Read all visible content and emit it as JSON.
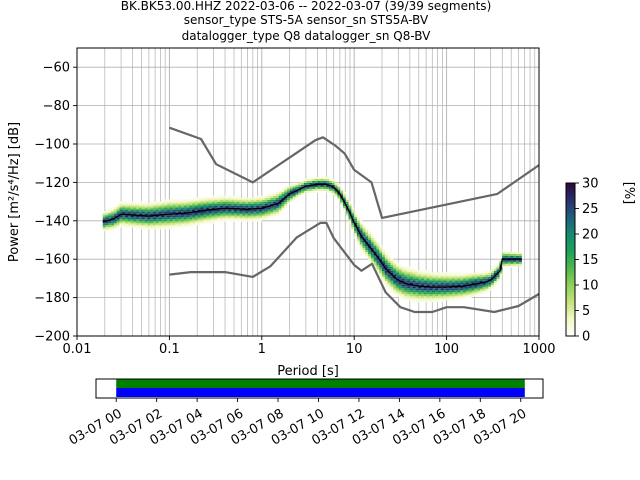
{
  "title": {
    "line1": "BK.BK53.00.HHZ   2022-03-06 -- 2022-03-07  (39/39 segments)",
    "line2": "sensor_type STS-5A sensor_sn STS5A-BV",
    "line3": "datalogger_type Q8 datalogger_sn Q8-BV"
  },
  "chart_data": [
    {
      "type": "heatmap",
      "title": "",
      "xlabel": "Period [s]",
      "ylabel": "Power [m²/s⁴/Hz] [dB]",
      "x_scale": "log",
      "xlim": [
        0.01,
        1000
      ],
      "ylim": [
        -200,
        -50
      ],
      "x_ticks": [
        {
          "value": 0.01,
          "label": "0.01"
        },
        {
          "value": 0.1,
          "label": "0.1"
        },
        {
          "value": 1,
          "label": "1"
        },
        {
          "value": 10,
          "label": "10"
        },
        {
          "value": 100,
          "label": "100"
        },
        {
          "value": 1000,
          "label": "1000"
        }
      ],
      "y_ticks": [
        -60,
        -80,
        -100,
        -120,
        -140,
        -160,
        -180,
        -200
      ],
      "grid": true,
      "colorbar": {
        "label": "[%]",
        "range": [
          0,
          30
        ],
        "ticks": [
          0,
          5,
          10,
          15,
          20,
          25,
          30
        ],
        "colormap": [
          "#ffffff",
          "#f3f8c4",
          "#c4e37b",
          "#8fd15b",
          "#4fb84e",
          "#1fa05a",
          "#178a70",
          "#1f5e7a",
          "#2a2e6e",
          "#2a0a38"
        ]
      },
      "noise_models": {
        "color": "#666666",
        "high": [
          [
            0.1,
            -91.5
          ],
          [
            0.22,
            -97.4
          ],
          [
            0.32,
            -110.5
          ],
          [
            0.8,
            -120
          ],
          [
            3.8,
            -98
          ],
          [
            4.6,
            -96.5
          ],
          [
            6.3,
            -101
          ],
          [
            7.9,
            -105
          ],
          [
            10,
            -113.5
          ],
          [
            15.4,
            -120
          ],
          [
            20,
            -138.5
          ],
          [
            354.8,
            -126
          ],
          [
            1000,
            -111
          ]
        ],
        "low": [
          [
            0.1,
            -168
          ],
          [
            0.17,
            -166.7
          ],
          [
            0.4,
            -166.7
          ],
          [
            0.8,
            -169.2
          ],
          [
            1.24,
            -163.7
          ],
          [
            2.4,
            -148.6
          ],
          [
            4.3,
            -141.1
          ],
          [
            5.0,
            -141.1
          ],
          [
            6.0,
            -149
          ],
          [
            10.0,
            -163
          ],
          [
            12.0,
            -166
          ],
          [
            15.6,
            -162.4
          ],
          [
            21.9,
            -177.3
          ],
          [
            31.6,
            -185
          ],
          [
            45,
            -187.5
          ],
          [
            70,
            -187.5
          ],
          [
            100,
            -185
          ],
          [
            154,
            -185
          ],
          [
            328,
            -187.5
          ],
          [
            600,
            -184.4
          ],
          [
            1000,
            -178.1
          ]
        ]
      },
      "mean_curve": {
        "color": "#000000",
        "points": [
          [
            0.019,
            -140.5
          ],
          [
            0.025,
            -139
          ],
          [
            0.028,
            -137.5
          ],
          [
            0.03,
            -136.5
          ],
          [
            0.04,
            -137
          ],
          [
            0.06,
            -137.5
          ],
          [
            0.1,
            -136.5
          ],
          [
            0.15,
            -136
          ],
          [
            0.25,
            -134.5
          ],
          [
            0.4,
            -133.5
          ],
          [
            0.7,
            -134
          ],
          [
            1.0,
            -133.5
          ],
          [
            1.5,
            -131
          ],
          [
            2.0,
            -126
          ],
          [
            3.0,
            -122
          ],
          [
            4.0,
            -121
          ],
          [
            5.0,
            -121
          ],
          [
            6.0,
            -122.5
          ],
          [
            7.0,
            -126
          ],
          [
            8.0,
            -131
          ],
          [
            9.0,
            -136
          ],
          [
            10,
            -141
          ],
          [
            12,
            -148
          ],
          [
            15,
            -154
          ],
          [
            18,
            -159
          ],
          [
            22,
            -165
          ],
          [
            28,
            -170
          ],
          [
            35,
            -172.5
          ],
          [
            50,
            -174
          ],
          [
            70,
            -174.5
          ],
          [
            100,
            -174.5
          ],
          [
            150,
            -174
          ],
          [
            200,
            -173
          ],
          [
            260,
            -172
          ],
          [
            300,
            -171
          ],
          [
            380,
            -166
          ],
          [
            400,
            -160
          ],
          [
            600,
            -160
          ],
          [
            650,
            -160
          ]
        ]
      },
      "spread": [
        [
          0.019,
          4
        ],
        [
          0.03,
          5
        ],
        [
          0.1,
          6
        ],
        [
          0.5,
          5
        ],
        [
          1.5,
          5
        ],
        [
          2.5,
          3
        ],
        [
          5,
          2
        ],
        [
          8,
          4
        ],
        [
          12,
          6
        ],
        [
          20,
          7
        ],
        [
          40,
          7
        ],
        [
          80,
          6
        ],
        [
          200,
          5
        ],
        [
          300,
          4
        ],
        [
          650,
          3
        ]
      ]
    },
    {
      "type": "timeline",
      "title": "",
      "x_ticks": [
        "03-07 00",
        "03-07 02",
        "03-07 04",
        "03-07 06",
        "03-07 08",
        "03-07 10",
        "03-07 12",
        "03-07 14",
        "03-07 16",
        "03-07 18",
        "03-07 20"
      ],
      "x_tick_hours": [
        0,
        2,
        4,
        6,
        8,
        10,
        12,
        14,
        16,
        18,
        20
      ],
      "xlim_hours": [
        -1,
        21.1
      ],
      "bars": [
        {
          "color": "#008000",
          "start_hour": 0,
          "end_hour": 20.2
        },
        {
          "color": "#0000ff",
          "start_hour": 0,
          "end_hour": 20.2
        }
      ]
    }
  ]
}
